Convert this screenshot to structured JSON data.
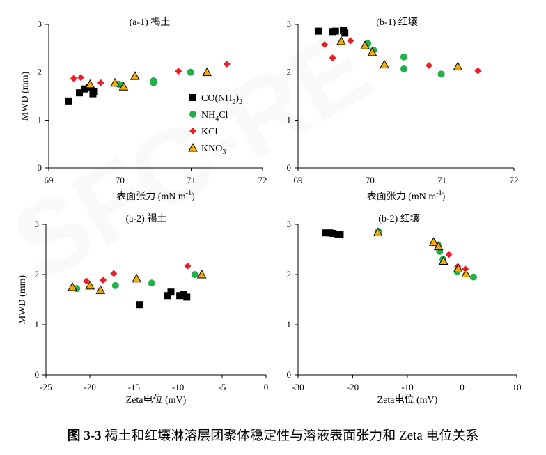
{
  "caption": {
    "figure_no": "图 3-3",
    "text": "褐土和红壤淋溶层团聚体稳定性与溶液表面张力和 Zeta 电位关系"
  },
  "watermark": {
    "text": "SFC-RE"
  },
  "legend": [
    {
      "name": "CO(NH",
      "sub": "2",
      "tail": ")",
      "sub2": "2",
      "marker": "square",
      "color": "#000000"
    },
    {
      "name": "NH",
      "sub": "4",
      "tail": "Cl",
      "sub2": "",
      "marker": "circle",
      "color": "#22b04a"
    },
    {
      "name": "KCl",
      "sub": "",
      "tail": "",
      "sub2": "",
      "marker": "diamond",
      "color": "#ee1c24"
    },
    {
      "name": "KNO",
      "sub": "3",
      "tail": "",
      "sub2": "",
      "marker": "triangle",
      "color": "#f2a900"
    }
  ],
  "chart_data": [
    {
      "id": "a1",
      "type": "scatter",
      "title": "(a-1) 褐土",
      "xlabel": "表面张力 (mN m",
      "xlabel_sup": "-1",
      "xlabel_tail": ")",
      "ylabel": "MWD (mm)",
      "xlim": [
        69,
        72
      ],
      "ylim": [
        0,
        3
      ],
      "xticks": [
        "69",
        "70",
        "71",
        "72"
      ],
      "yticks": [
        "0",
        "1",
        "2",
        "3"
      ],
      "series": [
        {
          "marker": "square",
          "points": [
            [
              69.28,
              1.4
            ],
            [
              69.43,
              1.57
            ],
            [
              69.5,
              1.65
            ],
            [
              69.57,
              1.68
            ],
            [
              69.62,
              1.55
            ],
            [
              69.64,
              1.6
            ]
          ]
        },
        {
          "marker": "circle",
          "points": [
            [
              69.98,
              1.75
            ],
            [
              70.03,
              1.72
            ],
            [
              70.47,
              1.82
            ],
            [
              70.47,
              1.78
            ],
            [
              70.99,
              2.0
            ]
          ]
        },
        {
          "marker": "diamond",
          "points": [
            [
              69.35,
              1.87
            ],
            [
              69.45,
              1.89
            ],
            [
              69.73,
              1.78
            ],
            [
              70.82,
              2.02
            ],
            [
              71.5,
              2.17
            ]
          ]
        },
        {
          "marker": "triangle",
          "points": [
            [
              69.58,
              1.75
            ],
            [
              69.93,
              1.78
            ],
            [
              70.05,
              1.7
            ],
            [
              70.21,
              1.92
            ],
            [
              71.22,
              2.0
            ]
          ]
        }
      ]
    },
    {
      "id": "b1",
      "type": "scatter",
      "title": "(b-1) 红壤",
      "xlabel": "表面张力 (mN m",
      "xlabel_sup": "-1",
      "xlabel_tail": ")",
      "ylabel": "",
      "xlim": [
        69,
        72
      ],
      "ylim": [
        0,
        3
      ],
      "xticks": [
        "69",
        "70",
        "71",
        "72"
      ],
      "yticks": [
        "0",
        "1",
        "2",
        "3"
      ],
      "series": [
        {
          "marker": "square",
          "points": [
            [
              69.28,
              2.86
            ],
            [
              69.48,
              2.85
            ],
            [
              69.52,
              2.86
            ],
            [
              69.63,
              2.87
            ],
            [
              69.65,
              2.82
            ]
          ]
        },
        {
          "marker": "circle",
          "points": [
            [
              69.97,
              2.6
            ],
            [
              70.05,
              2.46
            ],
            [
              70.47,
              2.32
            ],
            [
              70.47,
              2.07
            ],
            [
              70.99,
              1.96
            ]
          ]
        },
        {
          "marker": "diamond",
          "points": [
            [
              69.37,
              2.58
            ],
            [
              69.48,
              2.3
            ],
            [
              69.73,
              2.66
            ],
            [
              70.82,
              2.14
            ],
            [
              71.5,
              2.03
            ]
          ]
        },
        {
          "marker": "triangle",
          "points": [
            [
              69.6,
              2.65
            ],
            [
              69.93,
              2.56
            ],
            [
              70.03,
              2.42
            ],
            [
              70.2,
              2.16
            ],
            [
              71.22,
              2.12
            ]
          ]
        }
      ]
    },
    {
      "id": "a2",
      "type": "scatter",
      "title": "(a-2) 褐土",
      "xlabel": "Zeta电位 (mV)",
      "xlabel_sup": "",
      "xlabel_tail": "",
      "ylabel": "MWD (mm)",
      "xlim": [
        -25,
        0
      ],
      "ylim": [
        0,
        3
      ],
      "xticks": [
        "-25",
        "-20",
        "-15",
        "-10",
        "-5",
        "0"
      ],
      "yticks": [
        "0",
        "1",
        "2",
        "3"
      ],
      "series": [
        {
          "marker": "square",
          "points": [
            [
              -14.4,
              1.4
            ],
            [
              -11.2,
              1.58
            ],
            [
              -10.8,
              1.65
            ],
            [
              -9.8,
              1.58
            ],
            [
              -9.4,
              1.6
            ],
            [
              -9.0,
              1.55
            ]
          ]
        },
        {
          "marker": "circle",
          "points": [
            [
              -21.5,
              1.72
            ],
            [
              -17.1,
              1.78
            ],
            [
              -13.0,
              1.83
            ],
            [
              -8.1,
              2.0
            ]
          ]
        },
        {
          "marker": "diamond",
          "points": [
            [
              -20.4,
              1.87
            ],
            [
              -18.5,
              1.89
            ],
            [
              -17.3,
              2.02
            ],
            [
              -8.9,
              2.17
            ]
          ]
        },
        {
          "marker": "triangle",
          "points": [
            [
              -22.0,
              1.75
            ],
            [
              -20.0,
              1.78
            ],
            [
              -18.8,
              1.69
            ],
            [
              -14.7,
              1.92
            ],
            [
              -7.3,
              2.0
            ]
          ]
        }
      ]
    },
    {
      "id": "b2",
      "type": "scatter",
      "title": "(b-2) 红壤",
      "xlabel": "Zeta电位 (mV)",
      "xlabel_sup": "",
      "xlabel_tail": "",
      "ylabel": "",
      "xlim": [
        -30,
        10
      ],
      "ylim": [
        0,
        3
      ],
      "xticks": [
        "-30",
        "-20",
        "-10",
        "0",
        "10"
      ],
      "yticks": [
        "0",
        "1",
        "2",
        "3"
      ],
      "series": [
        {
          "marker": "square",
          "points": [
            [
              -24.9,
              2.83
            ],
            [
              -24.2,
              2.83
            ],
            [
              -23.6,
              2.82
            ],
            [
              -22.7,
              2.8
            ],
            [
              -22.3,
              2.8
            ]
          ]
        },
        {
          "marker": "circle",
          "points": [
            [
              -15.3,
              2.86
            ],
            [
              -4.4,
              2.59
            ],
            [
              -4.1,
              2.46
            ],
            [
              -3.5,
              2.3
            ],
            [
              -0.9,
              2.06
            ],
            [
              2.1,
              1.95
            ]
          ]
        },
        {
          "marker": "diamond",
          "points": [
            [
              -5.3,
              2.63
            ],
            [
              -2.4,
              2.4
            ],
            [
              -0.8,
              2.16
            ],
            [
              0.6,
              2.11
            ]
          ]
        },
        {
          "marker": "triangle",
          "points": [
            [
              -15.4,
              2.84
            ],
            [
              -5.2,
              2.65
            ],
            [
              -4.3,
              2.56
            ],
            [
              -3.4,
              2.27
            ],
            [
              -0.7,
              2.12
            ],
            [
              0.7,
              2.02
            ]
          ]
        }
      ]
    }
  ]
}
